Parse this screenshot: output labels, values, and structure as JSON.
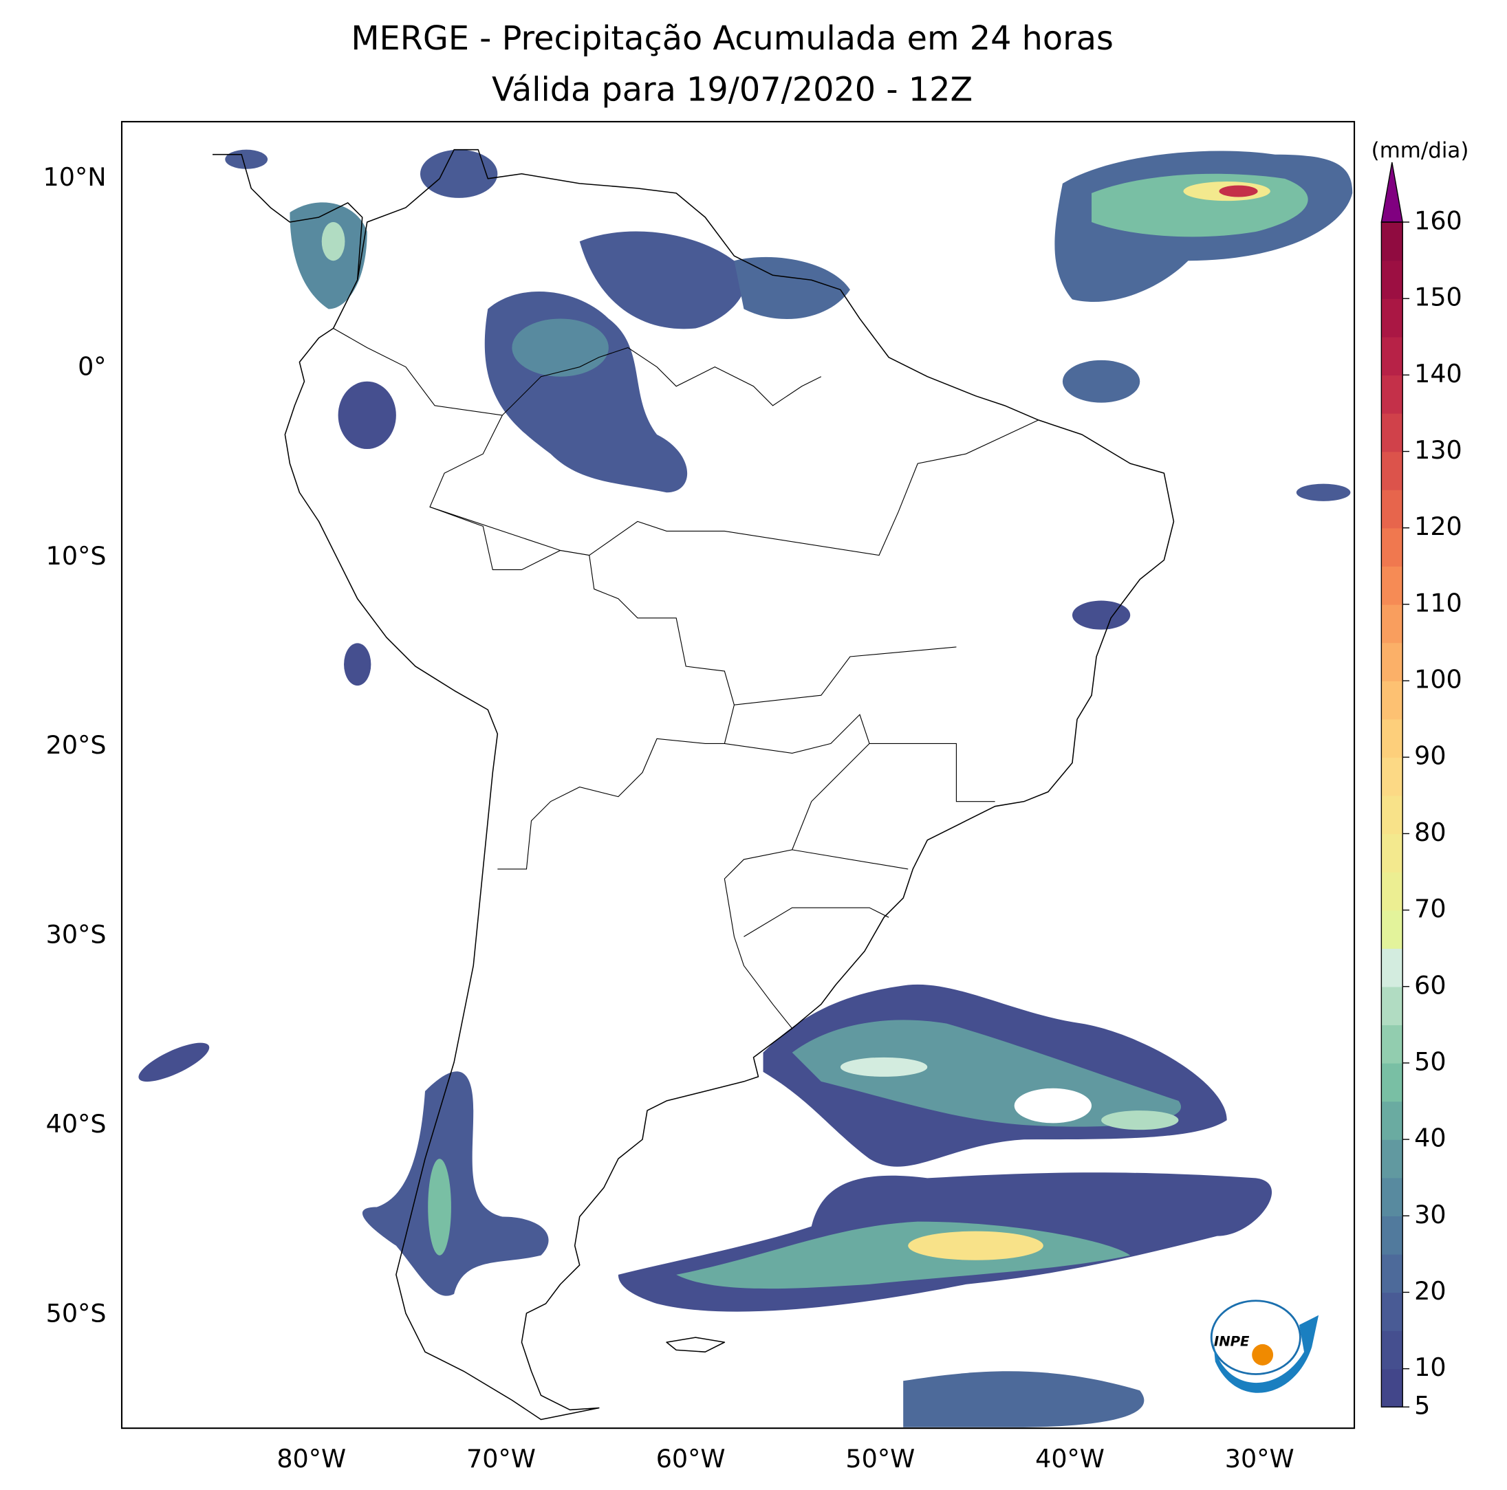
{
  "chart_data": {
    "type": "map",
    "title": "MERGE - Precipitação Acumulada em 24 horas",
    "subtitle": "Válida para 19/07/2020 - 12Z",
    "xlim": [
      -90,
      -25
    ],
    "ylim": [
      -56,
      13
    ],
    "xticks": [
      {
        "value": -80,
        "label": "80°W"
      },
      {
        "value": -70,
        "label": "70°W"
      },
      {
        "value": -60,
        "label": "60°W"
      },
      {
        "value": -50,
        "label": "50°W"
      },
      {
        "value": -40,
        "label": "40°W"
      },
      {
        "value": -30,
        "label": "30°W"
      }
    ],
    "yticks": [
      {
        "value": 10,
        "label": "10°N"
      },
      {
        "value": 0,
        "label": "0°"
      },
      {
        "value": -10,
        "label": "10°S"
      },
      {
        "value": -20,
        "label": "20°S"
      },
      {
        "value": -30,
        "label": "30°S"
      },
      {
        "value": -40,
        "label": "40°S"
      },
      {
        "value": -50,
        "label": "50°S"
      }
    ],
    "colorbar": {
      "label": "(mm/dia)",
      "clim": [
        5,
        160
      ],
      "ticks": [
        5,
        10,
        20,
        30,
        40,
        50,
        60,
        70,
        80,
        90,
        100,
        110,
        120,
        130,
        140,
        150,
        160
      ],
      "colors": [
        "#42468a",
        "#454f8f",
        "#495b95",
        "#4d6a9a",
        "#517a9d",
        "#588a9f",
        "#6199a0",
        "#6aaba1",
        "#79bfa4",
        "#92cdaf",
        "#b1dcc2",
        "#d3ecdf",
        "#e3f39b",
        "#ecee92",
        "#f3e98e",
        "#f8e289",
        "#fcd985",
        "#fdcf7b",
        "#fdc172",
        "#fbb068",
        "#f99e5e",
        "#f68b55",
        "#f0784f",
        "#e7654c",
        "#dc534b",
        "#d0414a",
        "#c43049",
        "#b72247",
        "#aa1744",
        "#9c0f42",
        "#900b40"
      ],
      "extend_color": "#800080"
    },
    "logo": "INPE"
  }
}
